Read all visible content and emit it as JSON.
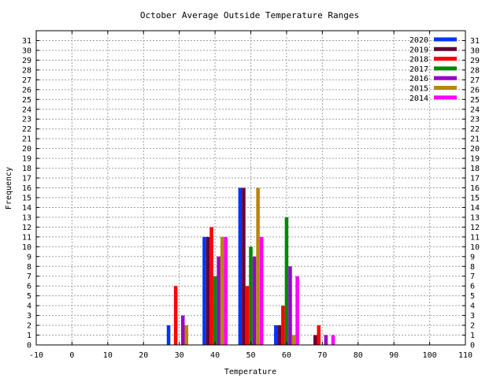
{
  "chart_data": {
    "type": "bar",
    "title": "October Average Outside Temperature Ranges",
    "xlabel": "Temperature",
    "ylabel": "Frequency",
    "xlim": [
      -10,
      110
    ],
    "ylim": [
      0,
      32
    ],
    "xticks": [
      -10,
      0,
      10,
      20,
      30,
      40,
      50,
      60,
      70,
      80,
      90,
      100,
      110
    ],
    "yticks": [
      0,
      1,
      2,
      3,
      4,
      5,
      6,
      7,
      8,
      9,
      10,
      11,
      12,
      13,
      14,
      15,
      16,
      17,
      18,
      19,
      20,
      21,
      22,
      23,
      24,
      25,
      26,
      27,
      28,
      29,
      30,
      31
    ],
    "grid": true,
    "legend_position": "top-right",
    "bin_centers": [
      30,
      40,
      50,
      60,
      70
    ],
    "series": [
      {
        "name": "2020",
        "color": "#0033ff",
        "values": [
          2,
          11,
          16,
          2,
          0
        ]
      },
      {
        "name": "2019",
        "color": "#660033",
        "values": [
          0,
          11,
          16,
          2,
          1
        ]
      },
      {
        "name": "2018",
        "color": "#ff0000",
        "values": [
          6,
          12,
          6,
          4,
          2
        ]
      },
      {
        "name": "2017",
        "color": "#008800",
        "values": [
          0,
          7,
          10,
          13,
          0
        ]
      },
      {
        "name": "2016",
        "color": "#9900cc",
        "values": [
          3,
          9,
          9,
          8,
          1
        ]
      },
      {
        "name": "2015",
        "color": "#b8860b",
        "values": [
          2,
          11,
          16,
          1,
          0
        ]
      },
      {
        "name": "2014",
        "color": "#ff00ff",
        "values": [
          0,
          11,
          11,
          7,
          1
        ]
      }
    ]
  }
}
